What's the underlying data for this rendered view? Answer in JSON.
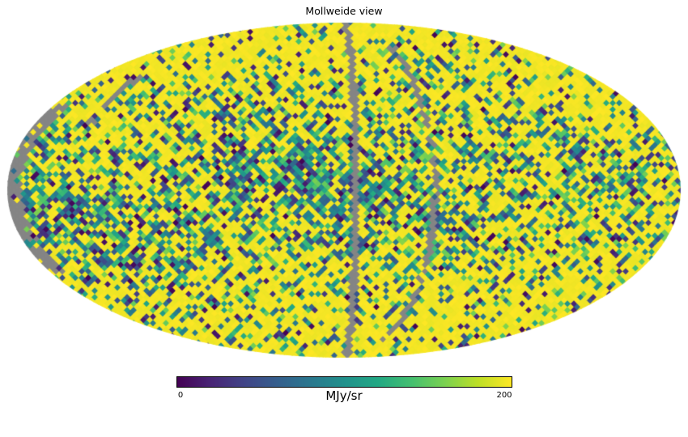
{
  "chart_data": {
    "type": "heatmap",
    "projection": "mollweide",
    "title": "Mollweide view",
    "colorbar": {
      "label": "MJy/sr",
      "min": 0,
      "max": 200,
      "tick_labels": [
        "0",
        "200"
      ],
      "colormap": "viridis",
      "colormap_stops": [
        "#440154",
        "#482475",
        "#414487",
        "#355f8d",
        "#2a788e",
        "#21918c",
        "#22a884",
        "#44bf70",
        "#7ad151",
        "#bddf26",
        "#fde725"
      ]
    },
    "masked_color": "#858585",
    "background_color": "#ffffff",
    "render": {
      "seed": 42,
      "cell_size": 8,
      "arcs": [
        {
          "c": 0.035,
          "w": 0.011,
          "vmin": -1.0,
          "vmax": 1.0,
          "p": 0.95
        },
        {
          "c": 0.27,
          "w": 0.01,
          "vmin": -0.9,
          "vmax": 0.86,
          "p": 0.8
        },
        {
          "c": -0.82,
          "w": 0.013,
          "vmin": 0.4,
          "vmax": 0.68,
          "p": 0.85
        }
      ],
      "left_edge_band": {
        "depth": 0.045,
        "vmax": 0.5,
        "p": 0.85
      },
      "dark_base": 0.17,
      "dark_equator_boost": 0.55,
      "dark_value_max": 0.82,
      "saturated_value_min": 0.97
    }
  }
}
